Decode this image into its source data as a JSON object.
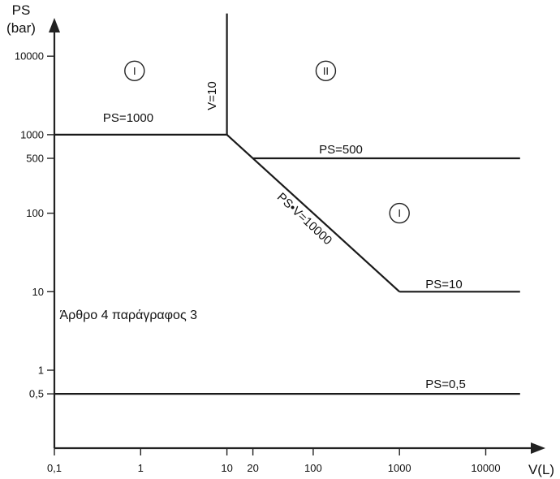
{
  "chart_data": {
    "type": "line",
    "x_scale": "log",
    "y_scale": "log",
    "xlabel": "V(L)",
    "ylabel_line1": "PS",
    "ylabel_line2": "(bar)",
    "x_ticks": [
      {
        "value": 0.1,
        "label": "0,1"
      },
      {
        "value": 1,
        "label": "1"
      },
      {
        "value": 10,
        "label": "10"
      },
      {
        "value": 20,
        "label": "20"
      },
      {
        "value": 100,
        "label": "100"
      },
      {
        "value": 1000,
        "label": "1000"
      },
      {
        "value": 10000,
        "label": "10000"
      }
    ],
    "y_ticks": [
      {
        "value": 0.5,
        "label": "0,5"
      },
      {
        "value": 1,
        "label": "1"
      },
      {
        "value": 10,
        "label": "10"
      },
      {
        "value": 100,
        "label": "100"
      },
      {
        "value": 500,
        "label": "500"
      },
      {
        "value": 1000,
        "label": "1000"
      },
      {
        "value": 10000,
        "label": "10000"
      }
    ],
    "series": [
      {
        "label": "PS=1000",
        "points": [
          [
            0.1,
            1000
          ],
          [
            10,
            1000
          ]
        ]
      },
      {
        "label": "V=10",
        "points": [
          [
            10,
            1000
          ],
          [
            10,
            35000
          ]
        ]
      },
      {
        "label": "PS•V=10000",
        "points": [
          [
            10,
            1000
          ],
          [
            1000,
            10
          ]
        ]
      },
      {
        "label": "PS=500",
        "points": [
          [
            20,
            500
          ],
          [
            25000,
            500
          ]
        ]
      },
      {
        "label": "PS=10",
        "points": [
          [
            1000,
            10
          ],
          [
            25000,
            10
          ]
        ]
      },
      {
        "label": "PS=0,5",
        "points": [
          [
            0.1,
            0.5
          ],
          [
            25000,
            0.5
          ]
        ]
      }
    ],
    "category_markers": [
      {
        "label": "I",
        "x": 0.85,
        "y": 6500
      },
      {
        "label": "II",
        "x": 140,
        "y": 6500
      },
      {
        "label": "I",
        "x": 1000,
        "y": 100
      }
    ],
    "annotations": [
      {
        "text": "Άρθρο 4 παράγραφος 3",
        "x": 0.115,
        "y": 4.5
      }
    ]
  }
}
